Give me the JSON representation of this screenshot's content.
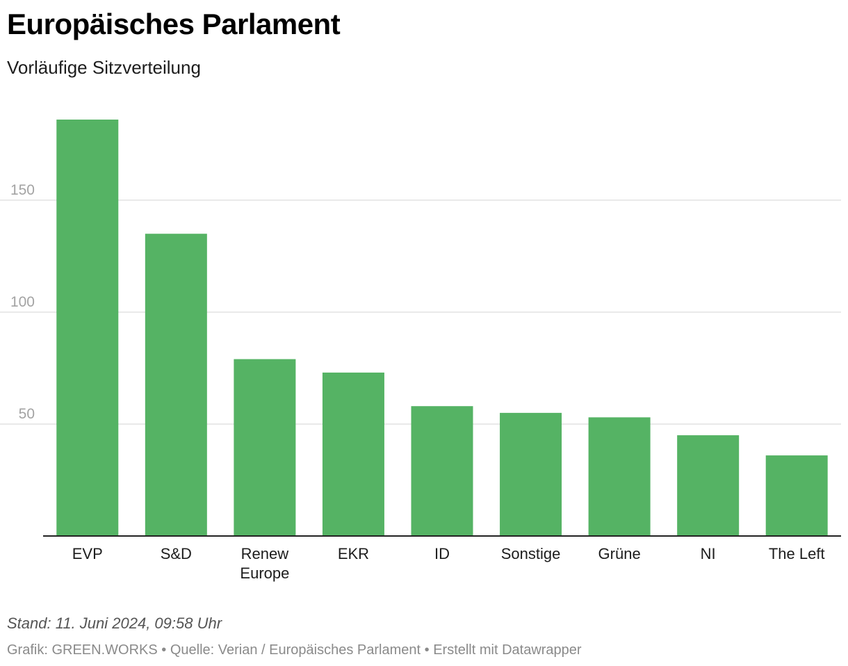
{
  "header": {
    "title": "Europäisches Parlament",
    "subtitle": "Vorläufige Sitzverteilung"
  },
  "chart_data": {
    "type": "bar",
    "title": "Europäisches Parlament",
    "subtitle": "Vorläufige Sitzverteilung",
    "xlabel": "",
    "ylabel": "",
    "categories": [
      [
        "EVP"
      ],
      [
        "S&D"
      ],
      [
        "Renew",
        "Europe"
      ],
      [
        "EKR"
      ],
      [
        "ID"
      ],
      [
        "Sonstige"
      ],
      [
        "Grüne"
      ],
      [
        "NI"
      ],
      [
        "The Left"
      ]
    ],
    "values": [
      186,
      135,
      79,
      73,
      58,
      55,
      53,
      45,
      36
    ],
    "ylim": [
      0,
      186
    ],
    "yticks": [
      50,
      100,
      150
    ],
    "grid": true,
    "bar_color": "#55b364",
    "grid_color": "#e2e2e2",
    "baseline_color": "#222222"
  },
  "footer": {
    "note": "Stand: 11. Juni 2024, 09:58 Uhr",
    "credit": "Grafik: GREEN.WORKS",
    "separator": "•",
    "source": "Quelle: Verian / Europäisches Parlament",
    "tool": "Erstellt mit Datawrapper"
  }
}
